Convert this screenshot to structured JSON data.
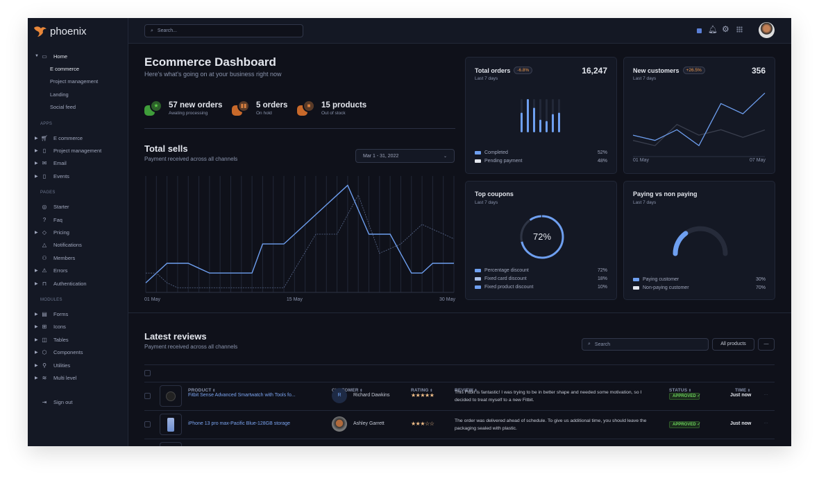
{
  "brand": {
    "name": "phoenix",
    "accent": "#e8873a"
  },
  "sidebar": {
    "home": {
      "label": "Home",
      "children": [
        "E commerce",
        "Project management",
        "Landing",
        "Social feed"
      ]
    },
    "sections": [
      {
        "title": "APPS",
        "items": [
          {
            "label": "E commerce",
            "icon": "cart-icon"
          },
          {
            "label": "Project management",
            "icon": "clipboard-icon"
          },
          {
            "label": "Email",
            "icon": "mail-icon"
          },
          {
            "label": "Events",
            "icon": "clipboard-icon"
          }
        ]
      },
      {
        "title": "PAGES",
        "items": [
          {
            "label": "Starter",
            "icon": "compass-icon"
          },
          {
            "label": "Faq",
            "icon": "help-icon"
          },
          {
            "label": "Pricing",
            "icon": "tag-icon"
          },
          {
            "label": "Notifications",
            "icon": "bell-icon"
          },
          {
            "label": "Members",
            "icon": "users-icon"
          },
          {
            "label": "Errors",
            "icon": "alert-icon"
          },
          {
            "label": "Authentication",
            "icon": "lock-icon"
          }
        ]
      },
      {
        "title": "MODULES",
        "items": [
          {
            "label": "Forms",
            "icon": "file-icon"
          },
          {
            "label": "Icons",
            "icon": "grid-icon"
          },
          {
            "label": "Tables",
            "icon": "columns-icon"
          },
          {
            "label": "Components",
            "icon": "package-icon"
          },
          {
            "label": "Utilities",
            "icon": "tool-icon"
          },
          {
            "label": "Multi level",
            "icon": "layers-icon"
          }
        ]
      }
    ],
    "signout": "Sign out"
  },
  "topbar": {
    "search_placeholder": "Search..."
  },
  "header": {
    "title": "Ecommerce Dashboard",
    "subtitle": "Here's what's going on at your business right now"
  },
  "stats": [
    {
      "value": "57 new orders",
      "label": "Awating processing",
      "color": "#3f9d3a"
    },
    {
      "value": "5 orders",
      "label": "On hold",
      "color": "#c8692a"
    },
    {
      "value": "15 products",
      "label": "Out of stock",
      "color": "#c8692a"
    }
  ],
  "total_sells": {
    "title": "Total sells",
    "subtitle": "Payment received across all channels",
    "date_range": "Mar 1 - 31, 2022"
  },
  "chart_data": [
    {
      "type": "line",
      "title": "Total sells",
      "x": [
        1,
        2,
        3,
        4,
        5,
        6,
        7,
        8,
        9,
        10,
        11,
        12,
        13,
        14,
        15,
        16,
        17,
        18,
        19,
        20,
        21,
        22,
        23,
        24,
        25,
        26,
        27,
        28,
        29,
        30
      ],
      "xticks": [
        "01 May",
        "15 May",
        "30 May"
      ],
      "ylim": [
        0,
        500
      ],
      "grid": "vertical",
      "series": [
        {
          "style": "solid",
          "color": "#6e9ff0",
          "values": [
            41,
            83,
            125,
            125,
            125,
            104,
            83,
            83,
            83,
            83,
            83,
            208,
            208,
            208,
            250,
            292,
            334,
            376,
            418,
            460,
            355,
            250,
            250,
            250,
            166,
            83,
            83,
            125,
            125,
            125
          ]
        },
        {
          "style": "dashed",
          "color": "#5a6a8e",
          "values": [
            83,
            83,
            41,
            20,
            20,
            20,
            20,
            20,
            20,
            20,
            20,
            20,
            20,
            20,
            97,
            173,
            250,
            250,
            250,
            334,
            418,
            293,
            168,
            188,
            208,
            250,
            292,
            271,
            251,
            230
          ]
        }
      ]
    },
    {
      "type": "bar",
      "title": "Total orders",
      "values": [
        0.59,
        1.0,
        0.74,
        0.38,
        0.34,
        0.55,
        0.59
      ],
      "ylim": [
        0,
        1
      ]
    },
    {
      "type": "line",
      "title": "New customers",
      "xticks": [
        "01 May",
        "07 May"
      ],
      "ylim": [
        0,
        300
      ],
      "series": [
        {
          "color": "#6e9ff0",
          "values": [
            90,
            68,
            113,
            46,
            223,
            180,
            267
          ]
        },
        {
          "color": "#3a3f4e",
          "values": [
            68,
            46,
            135,
            90,
            113,
            81,
            112
          ]
        }
      ]
    },
    {
      "type": "pie",
      "title": "Top coupons",
      "center_label": "72%",
      "values": [
        72,
        18,
        10
      ]
    },
    {
      "type": "pie",
      "title": "Paying vs non paying",
      "variant": "half-gauge",
      "values": [
        30,
        70
      ]
    }
  ],
  "cards": {
    "orders": {
      "title": "Total orders",
      "badge": "-6.8%",
      "subtitle": "Last 7 days",
      "value": "16,247",
      "legend": [
        {
          "label": "Completed",
          "value": "52%",
          "color": "#6e9ff0"
        },
        {
          "label": "Pending payment",
          "value": "48%",
          "color": "#e3e6ed"
        }
      ]
    },
    "customers": {
      "title": "New customers",
      "badge": "+26.5%",
      "subtitle": "Last 7 days",
      "value": "356",
      "x_start": "01 May",
      "x_end": "07 May"
    },
    "coupons": {
      "title": "Top coupons",
      "subtitle": "Last 7 days",
      "center": "72%",
      "legend": [
        {
          "label": "Percentage discount",
          "value": "72%",
          "color": "#6e9ff0"
        },
        {
          "label": "Fixed card discount",
          "value": "18%",
          "color": "#a9bfe8"
        },
        {
          "label": "Fixed product discount",
          "value": "10%",
          "color": "#6e9ff0"
        }
      ]
    },
    "paying": {
      "title": "Paying vs non paying",
      "subtitle": "Last 7 days",
      "legend": [
        {
          "label": "Paying customer",
          "value": "30%",
          "color": "#6e9ff0"
        },
        {
          "label": "Non-paying customer",
          "value": "70%",
          "color": "#e3e6ed"
        }
      ]
    }
  },
  "reviews": {
    "title": "Latest reviews",
    "subtitle": "Payment received across all channels",
    "search_placeholder": "Search",
    "filter": "All products",
    "more": "—",
    "columns": [
      "PRODUCT",
      "CUSTOMER",
      "RATING",
      "REVIEW",
      "STATUS",
      "TIME"
    ],
    "rows": [
      {
        "product": "Fitbit Sense Advanced Smartwatch with Tools fo...",
        "customer": "Richard Dawkins",
        "initial": "R",
        "rating": 5,
        "review": "This Fitbit is fantastic! I was trying to be in better shape and needed some motivation, so I decided to treat myself to a new Fitbit.",
        "status": "APPROVED",
        "time": "Just now"
      },
      {
        "product": "iPhone 13 pro max-Pacific Blue-128GB storage",
        "customer": "Ashley Garrett",
        "initial": "",
        "rating": 3,
        "review": "The order was delivered ahead of schedule. To give us additional time, you should leave the packaging sealed with plastic.",
        "status": "APPROVED",
        "time": "Just now"
      }
    ]
  }
}
